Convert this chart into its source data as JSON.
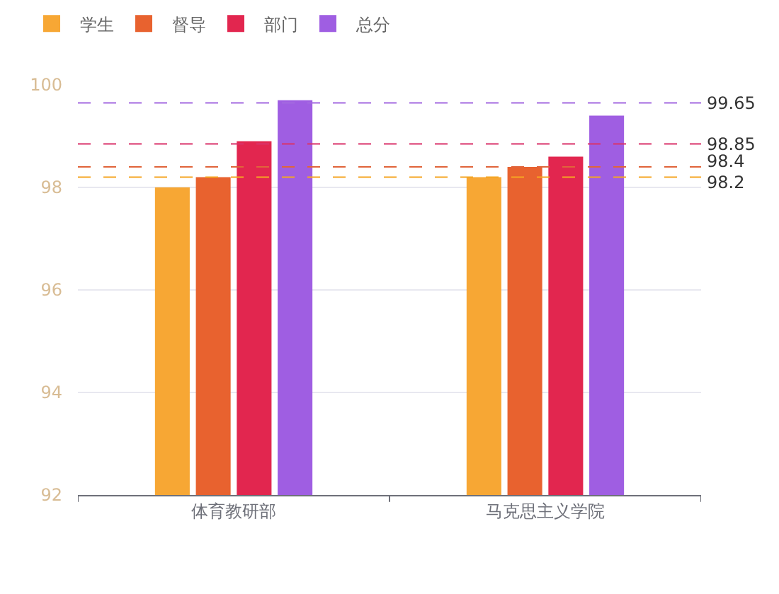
{
  "chart_data": {
    "type": "bar",
    "categories": [
      "体育教研部",
      "马克思主义学院"
    ],
    "series": [
      {
        "name": "学生",
        "color": "#f7a734",
        "values": [
          98.0,
          98.2
        ]
      },
      {
        "name": "督导",
        "color": "#e8622f",
        "values": [
          98.2,
          98.4
        ]
      },
      {
        "name": "部门",
        "color": "#e2264f",
        "values": [
          98.9,
          98.6
        ]
      },
      {
        "name": "总分",
        "color": "#9f5ee2",
        "values": [
          99.7,
          99.4
        ]
      }
    ],
    "ylim": [
      92,
      100
    ],
    "yticks": [
      92,
      94,
      96,
      98,
      100
    ],
    "grid": "y",
    "legend": "top left",
    "ref_lines": [
      {
        "axis": "y",
        "value": 99.65,
        "label": "99.65",
        "color": "#a46ae0",
        "line_style": "dashed"
      },
      {
        "axis": "y",
        "value": 98.85,
        "label": "98.85",
        "color": "#d9336b",
        "line_style": "dashed"
      },
      {
        "axis": "y",
        "value": 98.4,
        "label": "98.4",
        "color": "#e0643a",
        "line_style": "dashed"
      },
      {
        "axis": "y",
        "value": 98.2,
        "label": "98.2",
        "color": "#f5a623",
        "line_style": "dashed"
      }
    ]
  }
}
